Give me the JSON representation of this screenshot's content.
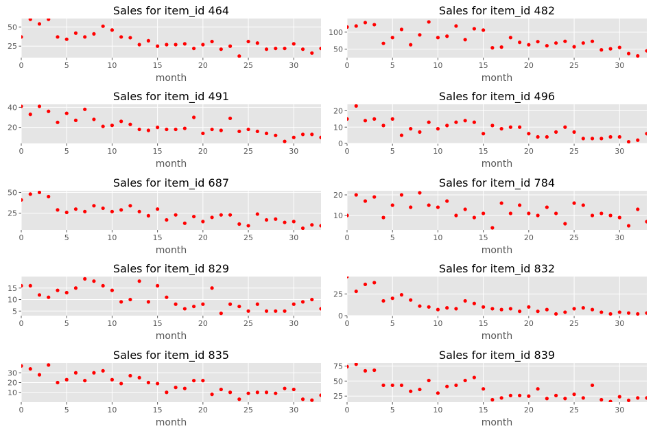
{
  "chart_data": [
    {
      "type": "scatter",
      "title": "Sales for item_id 464",
      "xlabel": "month",
      "xlim": [
        0,
        33
      ],
      "ylim": [
        10,
        61
      ],
      "xticks": [
        0,
        5,
        10,
        15,
        20,
        25,
        30
      ],
      "yticks": [
        25,
        50
      ],
      "grid": true,
      "color": "#ff0000",
      "x": [
        0,
        1,
        2,
        3,
        4,
        5,
        6,
        7,
        8,
        9,
        10,
        11,
        12,
        13,
        14,
        15,
        16,
        17,
        18,
        19,
        20,
        21,
        22,
        23,
        24,
        25,
        26,
        27,
        28,
        29,
        30,
        31,
        32,
        33
      ],
      "y": [
        37,
        60,
        54,
        60,
        37,
        34,
        42,
        37,
        41,
        51,
        46,
        37,
        36,
        27,
        32,
        25,
        27,
        27,
        28,
        22,
        27,
        31,
        21,
        25,
        12,
        31,
        29,
        21,
        22,
        22,
        28,
        21,
        16,
        22
      ]
    },
    {
      "type": "scatter",
      "title": "Sales for item_id 482",
      "xlabel": "month",
      "xlim": [
        0,
        33
      ],
      "ylim": [
        25,
        140
      ],
      "xticks": [
        0,
        5,
        10,
        15,
        20,
        25,
        30
      ],
      "yticks": [
        50,
        100
      ],
      "grid": true,
      "color": "#ff0000",
      "x": [
        0,
        1,
        2,
        3,
        4,
        5,
        6,
        7,
        8,
        9,
        10,
        11,
        12,
        13,
        14,
        15,
        16,
        17,
        18,
        19,
        20,
        21,
        22,
        23,
        24,
        25,
        26,
        27,
        28,
        29,
        30,
        31,
        32,
        33
      ],
      "y": [
        115,
        118,
        128,
        122,
        67,
        84,
        108,
        63,
        92,
        130,
        84,
        88,
        118,
        78,
        110,
        106,
        54,
        56,
        84,
        70,
        63,
        72,
        60,
        68,
        73,
        57,
        68,
        73,
        48,
        51,
        55,
        37,
        30,
        45
      ]
    },
    {
      "type": "scatter",
      "title": "Sales for item_id 491",
      "xlabel": "month",
      "xlim": [
        0,
        33
      ],
      "ylim": [
        4,
        43
      ],
      "xticks": [
        0,
        5,
        10,
        15,
        20,
        25,
        30
      ],
      "yticks": [
        20,
        40
      ],
      "grid": true,
      "color": "#ff0000",
      "x": [
        0,
        1,
        2,
        3,
        4,
        5,
        6,
        7,
        8,
        9,
        10,
        11,
        12,
        13,
        14,
        15,
        16,
        17,
        18,
        19,
        20,
        21,
        22,
        23,
        24,
        25,
        26,
        27,
        28,
        29,
        30,
        31,
        32,
        33
      ],
      "y": [
        41,
        33,
        41,
        36,
        25,
        34,
        27,
        38,
        28,
        21,
        22,
        26,
        23,
        18,
        17,
        20,
        18,
        18,
        19,
        30,
        14,
        18,
        17,
        29,
        16,
        18,
        16,
        14,
        12,
        6,
        10,
        13,
        13,
        10
      ]
    },
    {
      "type": "scatter",
      "title": "Sales for item_id 496",
      "xlabel": "month",
      "xlim": [
        0,
        33
      ],
      "ylim": [
        0,
        24
      ],
      "xticks": [
        0,
        5,
        10,
        15,
        20,
        25,
        30
      ],
      "yticks": [
        0,
        10,
        20
      ],
      "grid": true,
      "color": "#ff0000",
      "x": [
        0,
        1,
        2,
        3,
        4,
        5,
        6,
        7,
        8,
        9,
        10,
        11,
        12,
        13,
        14,
        15,
        16,
        17,
        18,
        19,
        20,
        21,
        22,
        23,
        24,
        25,
        26,
        27,
        28,
        29,
        30,
        31,
        32,
        33
      ],
      "y": [
        15,
        23,
        14,
        15,
        11,
        15,
        5,
        9,
        7,
        13,
        9,
        11,
        13,
        14,
        13,
        6,
        11,
        9,
        10,
        10,
        6,
        4,
        4,
        7,
        10,
        7,
        3,
        3,
        3,
        4,
        4,
        1,
        2,
        6
      ]
    },
    {
      "type": "scatter",
      "title": "Sales for item_id 687",
      "xlabel": "month",
      "xlim": [
        0,
        33
      ],
      "ylim": [
        5,
        52
      ],
      "xticks": [
        0,
        5,
        10,
        15,
        20,
        25,
        30
      ],
      "yticks": [
        25,
        50
      ],
      "grid": true,
      "color": "#ff0000",
      "x": [
        0,
        1,
        2,
        3,
        4,
        5,
        6,
        7,
        8,
        9,
        10,
        11,
        12,
        13,
        14,
        15,
        16,
        17,
        18,
        19,
        20,
        21,
        22,
        23,
        24,
        25,
        26,
        27,
        28,
        29,
        30,
        31,
        32,
        33
      ],
      "y": [
        41,
        48,
        50,
        45,
        29,
        26,
        30,
        27,
        34,
        31,
        27,
        29,
        34,
        27,
        22,
        30,
        17,
        23,
        13,
        21,
        15,
        20,
        23,
        23,
        12,
        10,
        24,
        17,
        18,
        14,
        15,
        7,
        11,
        10
      ]
    },
    {
      "type": "scatter",
      "title": "Sales for item_id 784",
      "xlabel": "month",
      "xlim": [
        0,
        33
      ],
      "ylim": [
        3,
        22
      ],
      "xticks": [
        0,
        5,
        10,
        15,
        20,
        25,
        30
      ],
      "yticks": [
        10,
        20
      ],
      "grid": true,
      "color": "#ff0000",
      "x": [
        0,
        1,
        2,
        3,
        4,
        5,
        6,
        7,
        8,
        9,
        10,
        11,
        12,
        13,
        14,
        15,
        16,
        17,
        18,
        19,
        20,
        21,
        22,
        23,
        24,
        25,
        26,
        27,
        28,
        29,
        30,
        31,
        32,
        33
      ],
      "y": [
        10,
        20,
        17,
        19,
        9,
        15,
        20,
        14,
        21,
        15,
        14,
        17,
        10,
        13,
        9,
        11,
        4,
        16,
        11,
        15,
        11,
        10,
        14,
        11,
        6,
        16,
        15,
        10,
        11,
        10,
        9,
        5,
        13,
        7
      ]
    },
    {
      "type": "scatter",
      "title": "Sales for item_id 829",
      "xlabel": "month",
      "xlim": [
        0,
        33
      ],
      "ylim": [
        3,
        20
      ],
      "xticks": [
        0,
        5,
        10,
        15,
        20,
        25,
        30
      ],
      "yticks": [
        5,
        10,
        15
      ],
      "grid": true,
      "color": "#ff0000",
      "x": [
        0,
        1,
        2,
        3,
        4,
        5,
        6,
        7,
        8,
        9,
        10,
        11,
        12,
        13,
        14,
        15,
        16,
        17,
        18,
        19,
        20,
        21,
        22,
        23,
        24,
        25,
        26,
        27,
        28,
        29,
        30,
        31,
        32,
        33
      ],
      "y": [
        16,
        16,
        12,
        11,
        14,
        13,
        15,
        19,
        18,
        16,
        14,
        9,
        10,
        18,
        9,
        16,
        11,
        8,
        6,
        7,
        8,
        15,
        4,
        8,
        7,
        5,
        8,
        5,
        5,
        5,
        8,
        9,
        10,
        6
      ]
    },
    {
      "type": "scatter",
      "title": "Sales for item_id 832",
      "xlabel": "month",
      "xlim": [
        0,
        33
      ],
      "ylim": [
        0,
        45
      ],
      "xticks": [
        0,
        5,
        10,
        15,
        20,
        25,
        30
      ],
      "yticks": [
        0,
        25
      ],
      "grid": true,
      "color": "#ff0000",
      "x": [
        0,
        1,
        2,
        3,
        4,
        5,
        6,
        7,
        8,
        9,
        10,
        11,
        12,
        13,
        14,
        15,
        16,
        17,
        18,
        19,
        20,
        21,
        22,
        23,
        24,
        25,
        26,
        27,
        28,
        29,
        30,
        31,
        32,
        33
      ],
      "y": [
        45,
        28,
        36,
        38,
        17,
        20,
        24,
        18,
        11,
        10,
        7,
        9,
        8,
        17,
        14,
        10,
        8,
        7,
        8,
        5,
        10,
        5,
        7,
        2,
        4,
        8,
        9,
        7,
        4,
        2,
        4,
        3,
        2,
        3
      ]
    },
    {
      "type": "scatter",
      "title": "Sales for item_id 835",
      "xlabel": "month",
      "xlim": [
        0,
        33
      ],
      "ylim": [
        0,
        40
      ],
      "xticks": [
        0,
        5,
        10,
        15,
        20,
        25,
        30
      ],
      "yticks": [
        10,
        20,
        30
      ],
      "grid": true,
      "color": "#ff0000",
      "x": [
        0,
        1,
        2,
        3,
        4,
        5,
        6,
        7,
        8,
        9,
        10,
        11,
        12,
        13,
        14,
        15,
        16,
        17,
        18,
        19,
        20,
        21,
        22,
        23,
        24,
        25,
        26,
        27,
        28,
        29,
        30,
        31,
        32,
        33
      ],
      "y": [
        37,
        34,
        28,
        38,
        20,
        23,
        30,
        22,
        30,
        32,
        23,
        19,
        27,
        25,
        20,
        19,
        10,
        15,
        14,
        22,
        22,
        8,
        13,
        10,
        3,
        9,
        10,
        10,
        9,
        14,
        13,
        3,
        2,
        7
      ]
    },
    {
      "type": "scatter",
      "title": "Sales for item_id 839",
      "xlabel": "month",
      "xlim": [
        0,
        33
      ],
      "ylim": [
        15,
        80
      ],
      "xticks": [
        0,
        5,
        10,
        15,
        20,
        25,
        30
      ],
      "yticks": [
        25,
        50,
        75
      ],
      "grid": true,
      "color": "#ff0000",
      "x": [
        0,
        1,
        2,
        3,
        4,
        5,
        6,
        7,
        8,
        9,
        10,
        11,
        12,
        13,
        14,
        15,
        16,
        17,
        18,
        19,
        20,
        21,
        22,
        23,
        24,
        25,
        26,
        27,
        28,
        29,
        30,
        31,
        32,
        33
      ],
      "y": [
        74,
        78,
        67,
        68,
        43,
        43,
        43,
        33,
        36,
        51,
        30,
        41,
        43,
        51,
        56,
        37,
        19,
        22,
        26,
        26,
        25,
        37,
        21,
        26,
        21,
        28,
        22,
        43,
        19,
        16,
        24,
        18,
        22,
        22
      ]
    }
  ]
}
